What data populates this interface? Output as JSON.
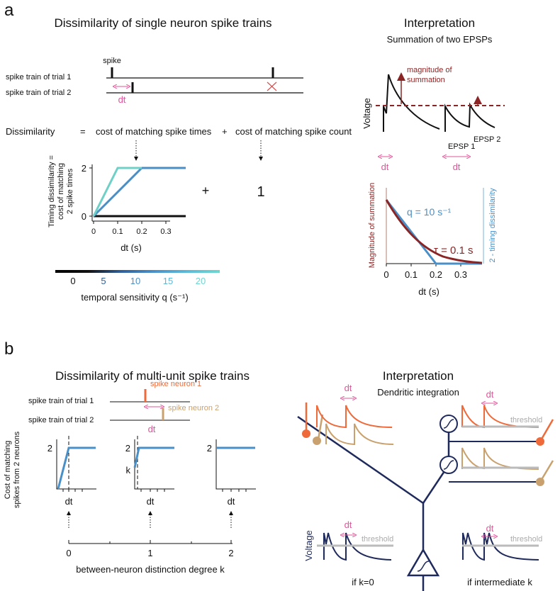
{
  "panel_a": {
    "label": "a",
    "title": "Dissimilarity of single neuron spike trains",
    "spike_label": "spike",
    "trial_1": "spike train of trial 1",
    "trial_2": "spike train of trial 2",
    "dt": "dt",
    "equation": {
      "lhs": "Dissimilarity",
      "equals": "=",
      "term_1": "cost of matching spike times",
      "plus": "+",
      "term_2": "cost of matching spike count"
    },
    "timing_plot": {
      "y_label": [
        "Timing dissimilarity =",
        "cost of matching",
        "2 spike times"
      ],
      "y_ticks": [
        "2",
        "0"
      ],
      "x_ticks": [
        "0",
        "0.1",
        "0.2",
        "0.3"
      ],
      "x_label": "dt (s)"
    },
    "plus": "+",
    "count_cost": "1",
    "colorbar": {
      "ticks": [
        "0",
        "5",
        "10",
        "15",
        "20"
      ],
      "label": "temporal sensitivity q (s⁻¹)"
    }
  },
  "interpretation_a": {
    "title": "Interpretation",
    "subtitle": "Summation of two EPSPs",
    "magnitude": [
      "magnitude of",
      "summation"
    ],
    "voltage": "Voltage",
    "epsp_1": "EPSP 1",
    "epsp_2": "EPSP 2",
    "dt_labels": [
      "dt",
      "dt"
    ],
    "plot": {
      "left_label": "Magnitude of summation",
      "right_label": "2 - timing dissimilarity",
      "q_label": "q = 10 s⁻¹",
      "tau_label": "τ = 0.1 s",
      "x_ticks": [
        "0",
        "0.1",
        "0.2",
        "0.3"
      ],
      "x_label": "dt (s)"
    }
  },
  "panel_b": {
    "label": "b",
    "title": "Dissimilarity of multi-unit spike trains",
    "spike_neuron_1": "spike neuron 1",
    "spike_neuron_2": "spike neuron 2",
    "trial_1": "spike train of trial 1",
    "trial_2": "spike train of trial 2",
    "dt": "dt",
    "y_label": [
      "Cost of matching",
      "spikes from 2 neurons"
    ],
    "plots": [
      {
        "y_tick": "2",
        "x_tick": "dt"
      },
      {
        "y_tick": "2",
        "k_label": "k",
        "x_tick": "dt"
      },
      {
        "y_tick": "2",
        "x_tick": "dt"
      }
    ],
    "k_ticks": [
      "0",
      "1",
      "2"
    ],
    "k_label": "between-neuron distinction degree k"
  },
  "interpretation_b": {
    "title": "Interpretation",
    "subtitle": "Dendritic integration",
    "dt_labels": [
      "dt",
      "dt",
      "dt",
      "dt"
    ],
    "threshold_labels": [
      "threshold",
      "threshold",
      "threshold"
    ],
    "voltage": "Voltage",
    "case_1": "if k=0",
    "case_2": "if intermediate k"
  }
}
